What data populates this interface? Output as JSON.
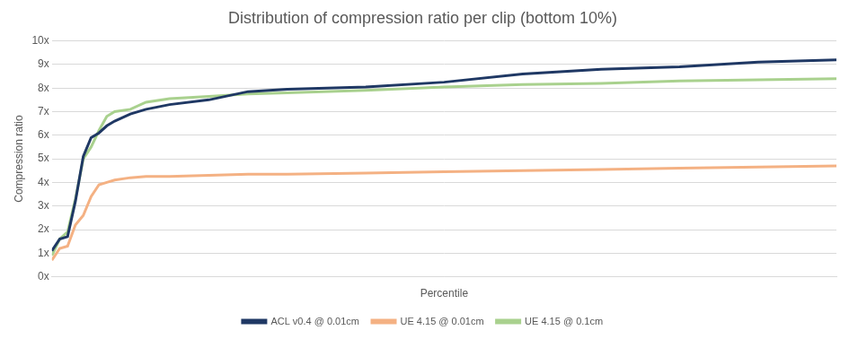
{
  "chart_data": {
    "type": "line",
    "title": "Distribution of compression ratio per clip (bottom 10%)",
    "x_label": "Percentile",
    "y_label": "Compression ratio",
    "x": [
      0,
      0.1,
      0.2,
      0.3,
      0.4,
      0.5,
      0.6,
      0.7,
      0.8,
      1.0,
      1.2,
      1.5,
      2.0,
      2.5,
      3,
      4,
      5,
      6,
      7,
      8,
      9,
      10
    ],
    "series": [
      {
        "name": "ACL v0.4 @ 0.01cm",
        "color": "#1f3864",
        "values": [
          1.1,
          1.6,
          1.7,
          3.2,
          5.1,
          5.9,
          6.1,
          6.4,
          6.6,
          6.9,
          7.1,
          7.3,
          7.5,
          7.85,
          7.95,
          8.05,
          8.25,
          8.6,
          8.8,
          8.9,
          9.1,
          9.2
        ]
      },
      {
        "name": "UE 4.15 @ 0.01cm",
        "color": "#f4b183",
        "values": [
          0.7,
          1.2,
          1.3,
          2.2,
          2.6,
          3.4,
          3.9,
          4.0,
          4.1,
          4.2,
          4.25,
          4.25,
          4.3,
          4.35,
          4.35,
          4.4,
          4.45,
          4.5,
          4.55,
          4.6,
          4.65,
          4.7
        ]
      },
      {
        "name": "UE 4.15 @ 0.1cm",
        "color": "#a9d18e",
        "values": [
          0.9,
          1.6,
          1.9,
          3.3,
          5.0,
          5.5,
          6.2,
          6.8,
          7.0,
          7.1,
          7.4,
          7.55,
          7.65,
          7.75,
          7.8,
          7.9,
          8.05,
          8.15,
          8.2,
          8.3,
          8.35,
          8.4
        ]
      }
    ],
    "xlim": [
      0,
      10
    ],
    "ylim": [
      0,
      10
    ],
    "yticks": [
      {
        "value": 0,
        "label": "0x"
      },
      {
        "value": 1,
        "label": "1x"
      },
      {
        "value": 2,
        "label": "2x"
      },
      {
        "value": 3,
        "label": "3x"
      },
      {
        "value": 4,
        "label": "4x"
      },
      {
        "value": 5,
        "label": "5x"
      },
      {
        "value": 6,
        "label": "6x"
      },
      {
        "value": 7,
        "label": "7x"
      },
      {
        "value": 8,
        "label": "8x"
      },
      {
        "value": 9,
        "label": "9x"
      },
      {
        "value": 10,
        "label": "10x"
      }
    ],
    "grid": true,
    "legend": "bottom",
    "tick_labels": "y"
  }
}
